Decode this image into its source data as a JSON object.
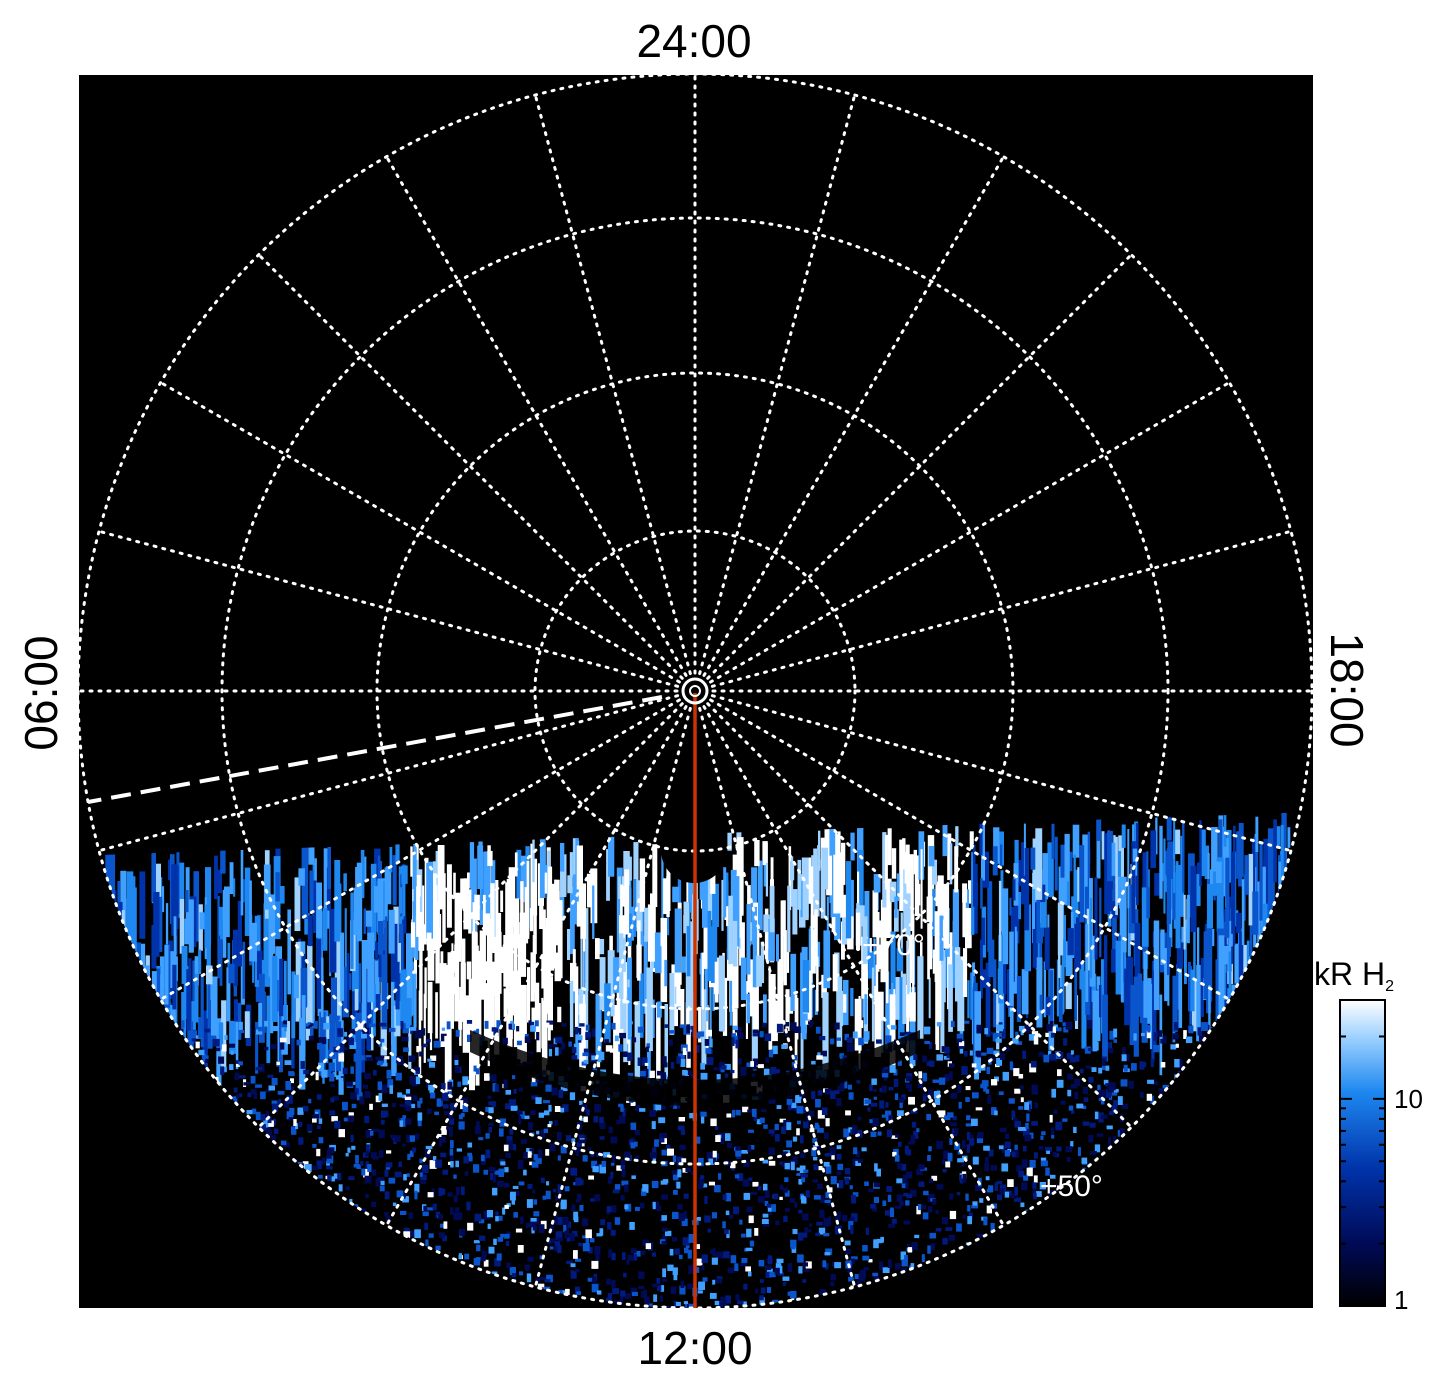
{
  "local_time_labels": {
    "top": "24:00",
    "bottom": "12:00",
    "left": "06:00",
    "right": "18:00"
  },
  "latitude_labels": [
    {
      "text": "+70°",
      "lat": 70
    },
    {
      "text": "+50°",
      "lat": 50
    }
  ],
  "grid": {
    "latitude_circles_deg": [
      90,
      80,
      70,
      60,
      50
    ],
    "longitude_spokes": 24,
    "style": "dotted",
    "color": "#ffffff"
  },
  "overlays": {
    "noon_meridian_color": "#cc3300",
    "dashed_line_color": "#ffffff"
  },
  "colorbar": {
    "title": "kR H",
    "title_subscript": "2",
    "scale": "log",
    "range": [
      1,
      30
    ],
    "ticks": [
      {
        "label": "10",
        "value": 10
      },
      {
        "label": "1",
        "value": 1
      }
    ],
    "colors": [
      "#000000",
      "#000a55",
      "#0033aa",
      "#1e88f0",
      "#9fd2ff",
      "#ffffff"
    ]
  },
  "colors": {
    "background": "#000000",
    "aurora_dim": "#001a66",
    "aurora_mid": "#1e88f0",
    "aurora_bright": "#ffffff"
  }
}
